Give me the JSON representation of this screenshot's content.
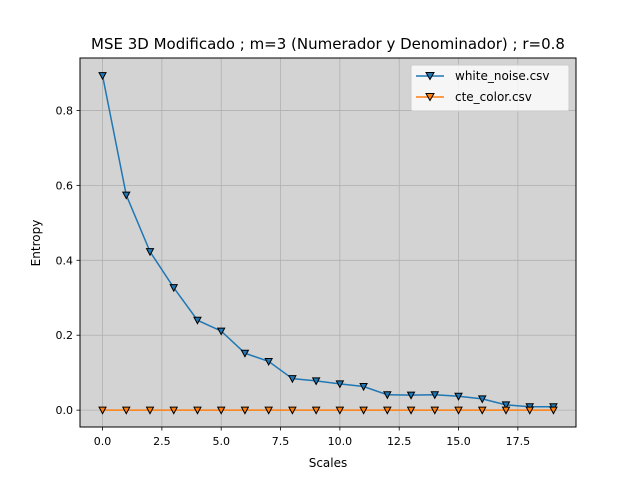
{
  "chart_data": {
    "type": "line",
    "title": "MSE 3D Modificado ; m=3 (Numerador y Denominador) ; r=0.8",
    "xlabel": "Scales",
    "ylabel": "Entropy",
    "xlim": [
      -0.95,
      19.95
    ],
    "ylim": [
      -0.045,
      0.94
    ],
    "xticks": [
      0.0,
      2.5,
      5.0,
      7.5,
      10.0,
      12.5,
      15.0,
      17.5
    ],
    "xtick_labels": [
      "0.0",
      "2.5",
      "5.0",
      "7.5",
      "10.0",
      "12.5",
      "15.0",
      "17.5"
    ],
    "yticks": [
      0.0,
      0.2,
      0.4,
      0.6,
      0.8
    ],
    "ytick_labels": [
      "0.0",
      "0.2",
      "0.4",
      "0.6",
      "0.8"
    ],
    "grid": true,
    "background_color": "#d3d3d3",
    "legend_position": "top-right",
    "marker": "triangle-down",
    "x": [
      0,
      1,
      2,
      3,
      4,
      5,
      6,
      7,
      8,
      9,
      10,
      11,
      12,
      13,
      14,
      15,
      16,
      17,
      18,
      19
    ],
    "series": [
      {
        "name": "white_noise.csv",
        "color": "#1f77b4",
        "values": [
          0.893,
          0.574,
          0.423,
          0.327,
          0.24,
          0.211,
          0.152,
          0.13,
          0.084,
          0.078,
          0.07,
          0.063,
          0.041,
          0.04,
          0.041,
          0.037,
          0.03,
          0.014,
          0.009,
          0.009
        ]
      },
      {
        "name": "cte_color.csv",
        "color": "#ff7f0e",
        "values": [
          0,
          0,
          0,
          0,
          0,
          0,
          0,
          0,
          0,
          0,
          0,
          0,
          0,
          0,
          0,
          0,
          0,
          0,
          0,
          0
        ]
      }
    ]
  }
}
